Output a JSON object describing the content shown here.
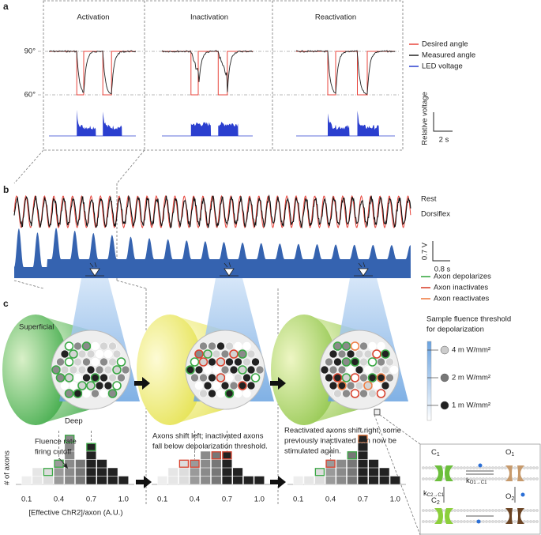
{
  "panel_labels": {
    "a": "a",
    "b": "b",
    "c": "c"
  },
  "panel_a": {
    "titles": [
      "Activation",
      "Inactivation",
      "Reactivation"
    ],
    "angle_labels": [
      "90°",
      "60°"
    ],
    "legend": [
      {
        "name": "Desired angle",
        "color": "#e8453c"
      },
      {
        "name": "Measured angle",
        "color": "#222222"
      },
      {
        "name": "LED voltage",
        "color": "#2b3fcf"
      }
    ],
    "scale_y_label": "Relative voltage",
    "scale_x_label": "2 s"
  },
  "panel_b": {
    "labels": [
      "Rest",
      "Dorsiflex"
    ],
    "scale_y_label": "0.7 V",
    "scale_x_label": "0.8 s"
  },
  "panel_c": {
    "legend": [
      {
        "name": "Axon depolarizes",
        "color": "#3aa845"
      },
      {
        "name": "Axon inactivates",
        "color": "#d9432f"
      },
      {
        "name": "Axon reactivates",
        "color": "#f07f45"
      }
    ],
    "threshold_title": [
      "Sample fluence threshold",
      "for depolarization"
    ],
    "threshold_log_scale": true,
    "thresholds": [
      {
        "value": 4,
        "label": "4 m W/mm²",
        "color": "#cccccc"
      },
      {
        "value": 2,
        "label": "2 m W/mm²",
        "color": "#777777"
      },
      {
        "value": 1,
        "label": "1 m W/mm²",
        "color": "#222222"
      }
    ],
    "depth_labels": [
      "Superficial",
      "Deep"
    ],
    "annotations": [
      [
        "Fluence rate",
        "firing cutoff"
      ],
      [
        "Axons shift left; inactivated axons",
        "fall below depolarization threshold."
      ],
      [
        "Reactivated axons shift right; some",
        "previously inactivated can now be",
        "stimulated again."
      ]
    ],
    "histogram": {
      "type": "histogram",
      "y_label": "# of axons",
      "x_label": "[Effective ChR2]/axon (A.U.)",
      "bins": [
        0.05,
        0.15,
        0.25,
        0.35,
        0.45,
        0.55,
        0.65,
        0.75,
        0.85,
        0.95,
        1.05
      ],
      "xlim": [
        0,
        1.1
      ],
      "xticks": [
        0.1,
        0.4,
        0.7,
        {
          "value": 1,
          "label": "1.0"
        }
      ],
      "grid": true,
      "bin_colors": [
        "#eeeeee",
        "#e6e6e6",
        "#dddddd",
        "#9a9a9a",
        "#8a8a8a",
        "#777777",
        "#222222",
        "#222222",
        "#222222",
        "#222222"
      ],
      "panels": [
        {
          "counts": [
            1,
            2,
            2,
            3,
            6,
            3,
            5,
            3,
            2,
            1
          ],
          "outlines": [
            null,
            null,
            "#3aa845",
            "#3aa845",
            "#3aa845",
            null,
            "#3aa845",
            null,
            null,
            null
          ]
        },
        {
          "counts": [
            1,
            2,
            3,
            3,
            4,
            4,
            4,
            2,
            1,
            1
          ],
          "outlines": [
            null,
            null,
            "#d9432f",
            "#d9432f",
            null,
            "#d9432f",
            "#d9432f",
            null,
            null,
            null
          ]
        },
        {
          "counts": [
            1,
            1,
            2,
            3,
            3,
            4,
            6,
            3,
            2,
            1
          ],
          "outlines": [
            null,
            null,
            "#3aa845",
            "#d9432f",
            null,
            "#3aa845",
            "#f07f45",
            null,
            null,
            null
          ]
        }
      ]
    }
  },
  "scheme": {
    "states": [
      {
        "name": "C",
        "sub": "1"
      },
      {
        "name": "O",
        "sub": "1"
      },
      {
        "name": "C",
        "sub": "2"
      },
      {
        "name": "O",
        "sub": "2"
      }
    ],
    "rates": [
      {
        "name": "k",
        "sub": "O1→C1"
      },
      {
        "name": "k",
        "sub": "C2→C1"
      }
    ]
  }
}
